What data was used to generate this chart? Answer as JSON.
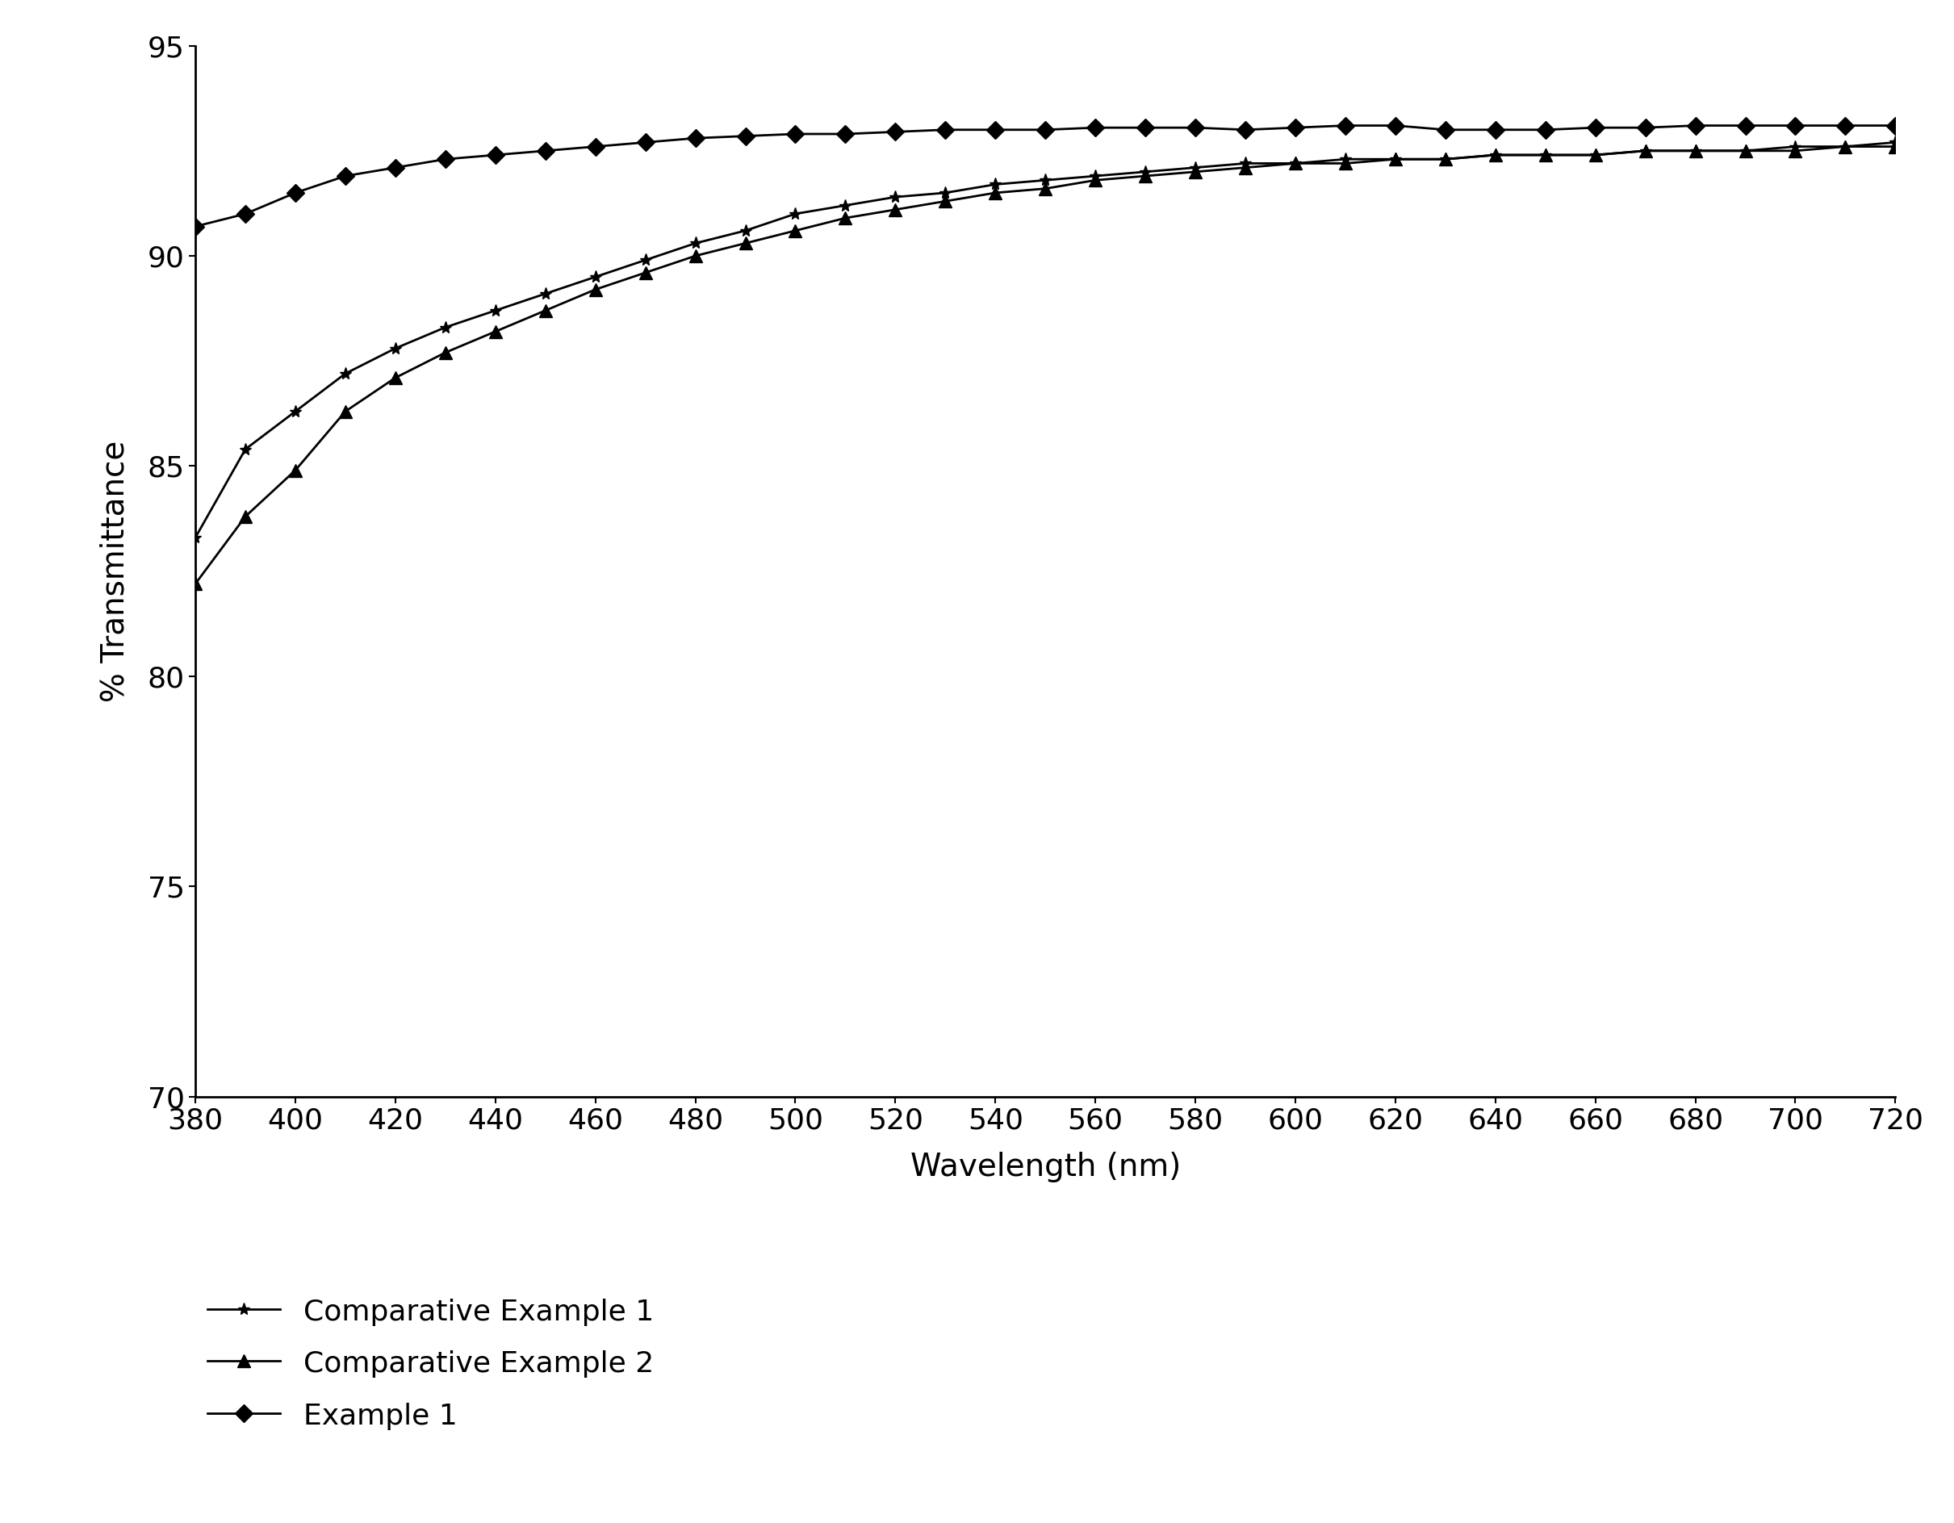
{
  "wavelengths": [
    380,
    390,
    400,
    410,
    420,
    430,
    440,
    450,
    460,
    470,
    480,
    490,
    500,
    510,
    520,
    530,
    540,
    550,
    560,
    570,
    580,
    590,
    600,
    610,
    620,
    630,
    640,
    650,
    660,
    670,
    680,
    690,
    700,
    710,
    720
  ],
  "comp_example_1": [
    83.3,
    85.4,
    86.3,
    87.2,
    87.8,
    88.3,
    88.7,
    89.1,
    89.5,
    89.9,
    90.3,
    90.6,
    91.0,
    91.2,
    91.4,
    91.5,
    91.7,
    91.8,
    91.9,
    92.0,
    92.1,
    92.2,
    92.2,
    92.3,
    92.3,
    92.3,
    92.4,
    92.4,
    92.4,
    92.5,
    92.5,
    92.5,
    92.6,
    92.6,
    92.7
  ],
  "comp_example_2": [
    82.2,
    83.8,
    84.9,
    86.3,
    87.1,
    87.7,
    88.2,
    88.7,
    89.2,
    89.6,
    90.0,
    90.3,
    90.6,
    90.9,
    91.1,
    91.3,
    91.5,
    91.6,
    91.8,
    91.9,
    92.0,
    92.1,
    92.2,
    92.2,
    92.3,
    92.3,
    92.4,
    92.4,
    92.4,
    92.5,
    92.5,
    92.5,
    92.5,
    92.6,
    92.6
  ],
  "example_1": [
    90.7,
    91.0,
    91.5,
    91.9,
    92.1,
    92.3,
    92.4,
    92.5,
    92.6,
    92.7,
    92.8,
    92.85,
    92.9,
    92.9,
    92.95,
    93.0,
    93.0,
    93.0,
    93.05,
    93.05,
    93.05,
    93.0,
    93.05,
    93.1,
    93.1,
    93.0,
    93.0,
    93.0,
    93.05,
    93.05,
    93.1,
    93.1,
    93.1,
    93.1,
    93.1
  ],
  "xlabel": "Wavelength (nm)",
  "ylabel": "% Transmittance",
  "xlim": [
    380,
    720
  ],
  "ylim": [
    70,
    95
  ],
  "xticks": [
    380,
    400,
    420,
    440,
    460,
    480,
    500,
    520,
    540,
    560,
    580,
    600,
    620,
    640,
    660,
    680,
    700,
    720
  ],
  "yticks": [
    70,
    75,
    80,
    85,
    90,
    95
  ],
  "legend_labels": [
    "Comparative Example 1",
    "Comparative Example 2",
    "Example 1"
  ],
  "line_color": "#000000",
  "marker_comp1": "*",
  "marker_comp2": "^",
  "marker_ex1": "D",
  "axis_fontsize": 28,
  "tick_fontsize": 26,
  "legend_fontsize": 26
}
